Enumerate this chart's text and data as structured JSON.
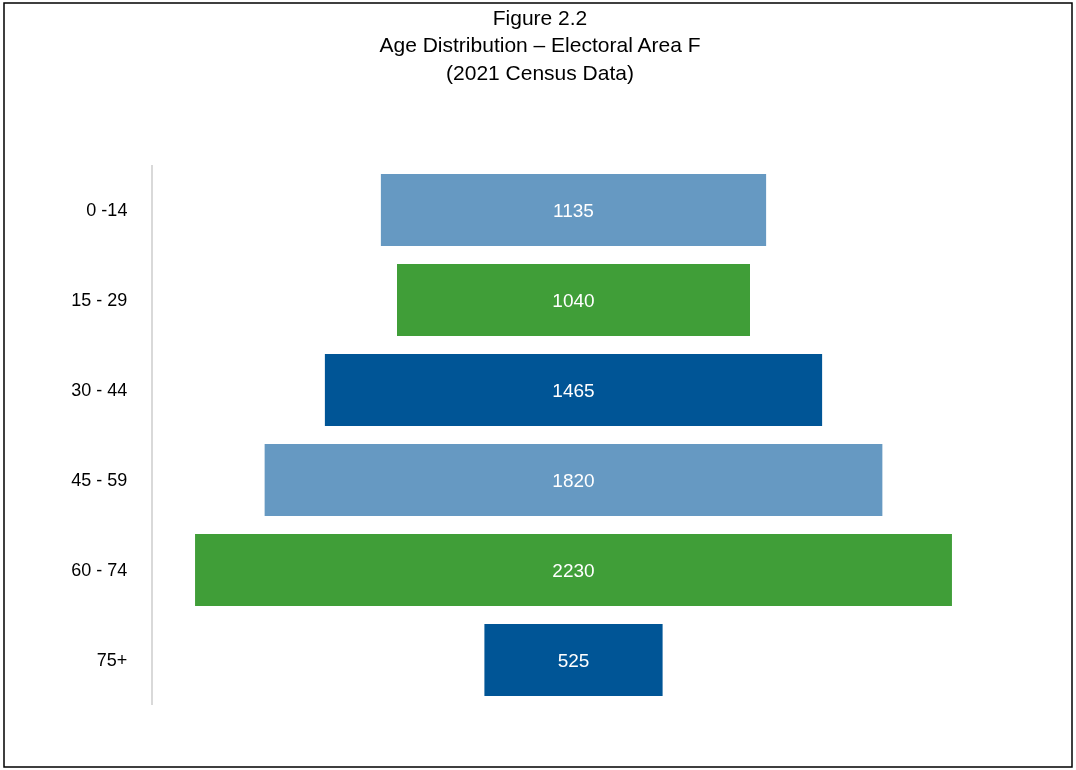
{
  "chart_data": {
    "type": "other",
    "title": "Figure 2.2\nAge Distribution – Electoral Area F\n(2021 Census Data)",
    "categories": [
      "0 -14",
      "15 - 29",
      "30 - 44",
      "45 - 59",
      "60 - 74",
      "75+"
    ],
    "values": [
      1135,
      1040,
      1465,
      1820,
      2230,
      525
    ],
    "colors": [
      "#6699c2",
      "#409e38",
      "#005596",
      "#6699c2",
      "#409e38",
      "#005596"
    ],
    "data_labels": true,
    "legend": false
  }
}
